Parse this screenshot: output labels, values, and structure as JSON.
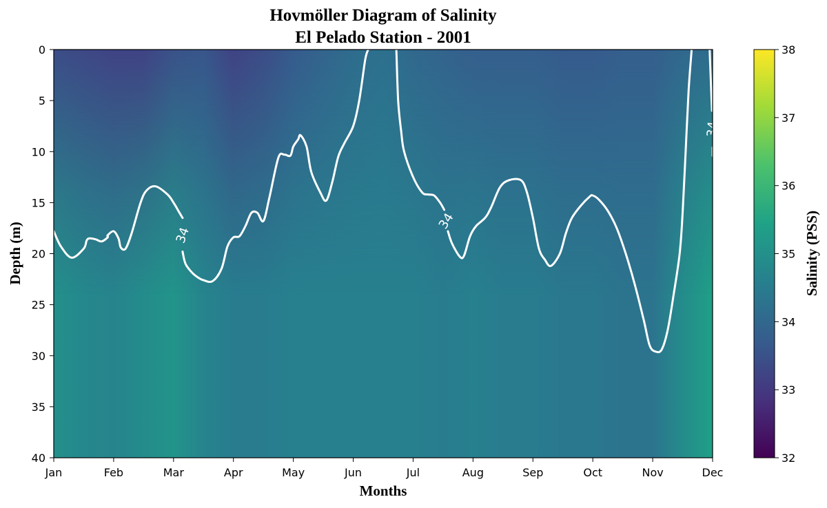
{
  "chart_data": {
    "type": "heatmap",
    "title": "Hovmöller Diagram of Salinity",
    "subtitle": "El Pelado Station - 2001",
    "xlabel": "Months",
    "ylabel": "Depth (m)",
    "x_ticks": [
      "Jan",
      "Feb",
      "Mar",
      "Apr",
      "May",
      "Jun",
      "Jul",
      "Aug",
      "Sep",
      "Oct",
      "Nov",
      "Dec"
    ],
    "xlim": [
      0,
      11
    ],
    "y_ticks": [
      0,
      5,
      10,
      15,
      20,
      25,
      30,
      35,
      40
    ],
    "ylim": [
      0,
      40
    ],
    "y_inverted": true,
    "colorbar": {
      "label": "Salinity (PSS)",
      "ticks": [
        32,
        33,
        34,
        35,
        36,
        37,
        38
      ],
      "range": [
        32,
        38
      ],
      "colormap": "viridis"
    },
    "colormap_stops": [
      "#440154",
      "#46327e",
      "#365c8d",
      "#277f8e",
      "#1fa187",
      "#4ac16d",
      "#a0da39",
      "#fde725"
    ],
    "surface_profile": {
      "description_months": [
        0,
        0.5,
        1,
        1.5,
        2,
        2.5,
        3,
        3.5,
        4,
        4.5,
        5,
        5.5,
        6,
        6.5,
        7,
        7.5,
        8,
        8.5,
        9,
        9.5,
        10,
        10.5,
        11
      ],
      "surface_salinity": [
        33.4,
        33.3,
        33.2,
        33.2,
        33.5,
        33.6,
        33.2,
        33.4,
        33.7,
        33.9,
        34.1,
        34.2,
        34.0,
        33.9,
        33.8,
        33.8,
        33.8,
        33.7,
        33.7,
        33.8,
        33.8,
        34.0,
        34.1
      ],
      "deep_salinity": [
        35.0,
        34.8,
        34.7,
        34.9,
        35.1,
        34.7,
        34.5,
        34.5,
        34.6,
        34.6,
        34.6,
        34.6,
        34.6,
        34.5,
        34.6,
        34.5,
        34.5,
        34.4,
        34.4,
        34.3,
        34.3,
        34.9,
        35.4
      ]
    },
    "contours": [
      {
        "level": 34,
        "label": "34",
        "color": "#ffffff",
        "segments": [
          [
            [
              0,
              17.8
            ],
            [
              0.12,
              19.3
            ],
            [
              0.3,
              20.4
            ],
            [
              0.5,
              19.5
            ],
            [
              0.55,
              18.7
            ],
            [
              0.6,
              18.5
            ],
            [
              0.7,
              18.6
            ],
            [
              0.8,
              18.8
            ],
            [
              0.9,
              18.4
            ],
            [
              0.9,
              18.2
            ],
            [
              1.0,
              17.8
            ],
            [
              1.08,
              18.5
            ],
            [
              1.12,
              19.4
            ],
            [
              1.2,
              19.5
            ],
            [
              1.3,
              18.0
            ],
            [
              1.45,
              15.0
            ],
            [
              1.55,
              13.8
            ],
            [
              1.7,
              13.4
            ],
            [
              1.9,
              14.2
            ],
            [
              2.0,
              15.0
            ],
            [
              2.1,
              16.0
            ],
            [
              2.15,
              16.5
            ]
          ],
          [
            [
              2.15,
              19.8
            ],
            [
              2.2,
              21.0
            ],
            [
              2.3,
              21.8
            ],
            [
              2.4,
              22.3
            ],
            [
              2.5,
              22.6
            ],
            [
              2.65,
              22.7
            ],
            [
              2.8,
              21.5
            ],
            [
              2.9,
              19.3
            ],
            [
              3.0,
              18.4
            ],
            [
              3.1,
              18.3
            ],
            [
              3.2,
              17.3
            ],
            [
              3.3,
              16.0
            ],
            [
              3.4,
              16.0
            ],
            [
              3.5,
              16.8
            ],
            [
              3.6,
              14.5
            ],
            [
              3.75,
              10.6
            ],
            [
              3.85,
              10.3
            ],
            [
              3.95,
              10.4
            ],
            [
              4.0,
              9.5
            ],
            [
              4.08,
              8.8
            ],
            [
              4.12,
              8.4
            ],
            [
              4.22,
              9.5
            ],
            [
              4.3,
              12.0
            ],
            [
              4.45,
              14.0
            ],
            [
              4.55,
              14.8
            ],
            [
              4.65,
              13.0
            ],
            [
              4.75,
              10.5
            ],
            [
              4.85,
              9.2
            ],
            [
              5.0,
              7.5
            ],
            [
              5.1,
              5.0
            ],
            [
              5.2,
              1.0
            ],
            [
              5.25,
              0
            ]
          ],
          [
            [
              5.72,
              0
            ],
            [
              5.75,
              5.0
            ],
            [
              5.8,
              8.0
            ],
            [
              5.85,
              10.0
            ],
            [
              6.0,
              12.5
            ],
            [
              6.15,
              14.0
            ],
            [
              6.25,
              14.2
            ],
            [
              6.35,
              14.3
            ],
            [
              6.45,
              15.0
            ],
            [
              6.52,
              15.7
            ]
          ],
          [
            [
              6.58,
              17.8
            ],
            [
              6.65,
              19.0
            ],
            [
              6.78,
              20.3
            ],
            [
              6.85,
              20.2
            ],
            [
              6.95,
              18.3
            ],
            [
              7.05,
              17.3
            ],
            [
              7.2,
              16.5
            ],
            [
              7.3,
              15.5
            ],
            [
              7.45,
              13.5
            ],
            [
              7.6,
              12.8
            ],
            [
              7.8,
              12.8
            ],
            [
              7.9,
              14.0
            ],
            [
              8.0,
              16.5
            ],
            [
              8.1,
              19.5
            ],
            [
              8.2,
              20.6
            ],
            [
              8.3,
              21.2
            ],
            [
              8.45,
              20.0
            ],
            [
              8.55,
              18.0
            ],
            [
              8.65,
              16.5
            ],
            [
              8.8,
              15.3
            ],
            [
              8.95,
              14.4
            ],
            [
              9.0,
              14.3
            ],
            [
              9.1,
              14.7
            ],
            [
              9.25,
              15.8
            ],
            [
              9.4,
              17.5
            ],
            [
              9.55,
              20.0
            ],
            [
              9.7,
              23.0
            ],
            [
              9.85,
              26.5
            ],
            [
              9.95,
              29.0
            ],
            [
              10.05,
              29.6
            ],
            [
              10.15,
              29.4
            ],
            [
              10.25,
              27.5
            ],
            [
              10.35,
              24.0
            ],
            [
              10.45,
              20.0
            ],
            [
              10.5,
              16.0
            ],
            [
              10.55,
              10.0
            ],
            [
              10.6,
              4.0
            ],
            [
              10.65,
              0
            ]
          ],
          [
            [
              10.95,
              0
            ],
            [
              10.97,
              3.0
            ],
            [
              10.99,
              6.0
            ]
          ],
          [
            [
              11.0,
              9.6
            ],
            [
              11.0,
              10.4
            ]
          ]
        ],
        "label_positions": [
          [
            2.15,
            18.2
          ],
          [
            6.55,
            16.8
          ],
          [
            10.99,
            7.8
          ]
        ],
        "label_angles": [
          -70,
          -58,
          -85
        ]
      }
    ]
  }
}
